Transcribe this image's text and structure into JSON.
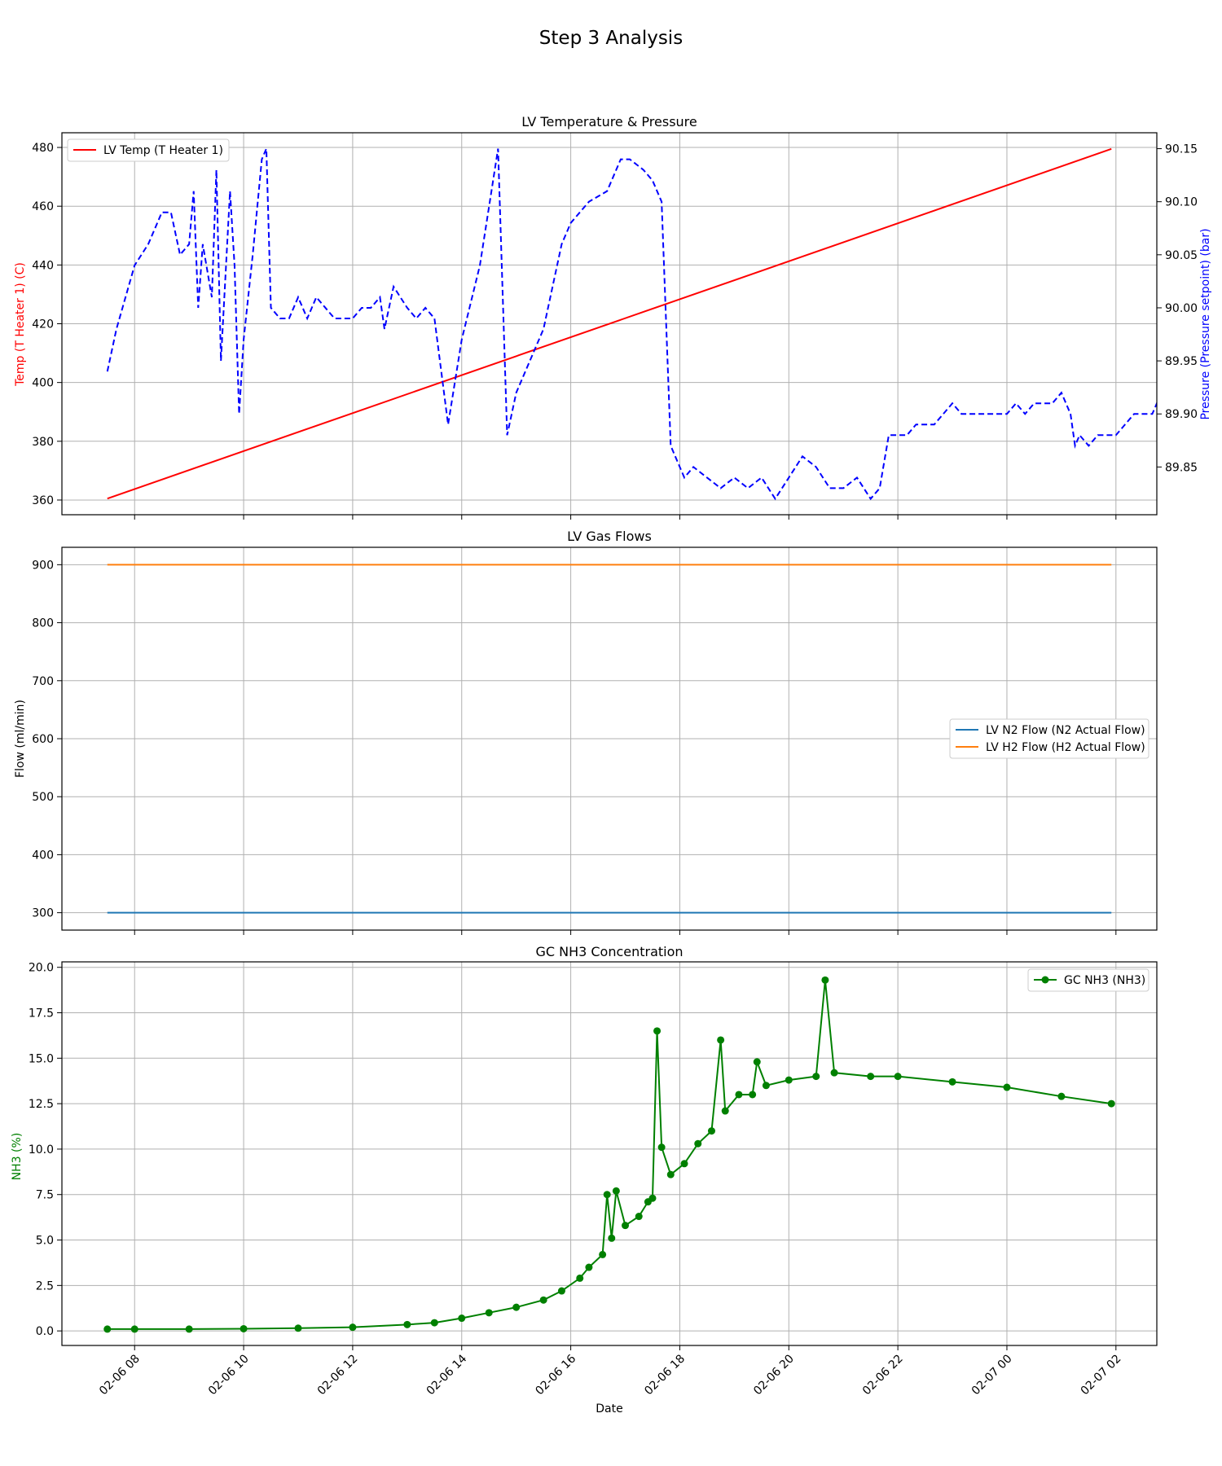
{
  "figure": {
    "suptitle": "Step 3 Analysis"
  },
  "colors": {
    "temperature": "#ff0000",
    "pressure": "#0000ff",
    "n2": "#1f77b4",
    "h2": "#ff7f0e",
    "nh3": "#008000",
    "grid": "#b0b0b0"
  },
  "chart_data": [
    {
      "type": "line",
      "title": "LV Temperature & Pressure",
      "xlabel": "",
      "ylabel": "Temp (T Heater 1) (C)",
      "y2label": "Pressure (Pressure setpoint) (bar)",
      "ylim": [
        355,
        485
      ],
      "y2lim": [
        89.805,
        90.165
      ],
      "yticks": [
        360,
        380,
        400,
        420,
        440,
        460,
        480
      ],
      "y2ticks": [
        "89.85",
        "89.90",
        "89.95",
        "90.00",
        "90.05",
        "90.10",
        "90.15"
      ],
      "grid": true,
      "legend": {
        "position": "upper-left",
        "entries": [
          "LV Temp (T Heater 1)"
        ]
      },
      "series": [
        {
          "name": "LV Temp (T Heater 1)",
          "axis": "left",
          "style": "solid",
          "points": [
            [
              "2026-02-06 07:30",
              360.5
            ],
            [
              "2026-02-07 01:55",
              479.5
            ]
          ]
        },
        {
          "axis": "right",
          "style": "dashed",
          "points": [
            [
              "2026-02-06 07:30",
              89.94
            ],
            [
              "2026-02-06 07:40",
              89.98
            ],
            [
              "2026-02-06 07:50",
              90.01
            ],
            [
              "2026-02-06 08:00",
              90.04
            ],
            [
              "2026-02-06 08:15",
              90.06
            ],
            [
              "2026-02-06 08:30",
              90.09
            ],
            [
              "2026-02-06 08:40",
              90.09
            ],
            [
              "2026-02-06 08:50",
              90.05
            ],
            [
              "2026-02-06 09:00",
              90.06
            ],
            [
              "2026-02-06 09:05",
              90.11
            ],
            [
              "2026-02-06 09:10",
              90.0
            ],
            [
              "2026-02-06 09:15",
              90.06
            ],
            [
              "2026-02-06 09:25",
              90.01
            ],
            [
              "2026-02-06 09:30",
              90.13
            ],
            [
              "2026-02-06 09:35",
              89.95
            ],
            [
              "2026-02-06 09:45",
              90.11
            ],
            [
              "2026-02-06 09:50",
              90.04
            ],
            [
              "2026-02-06 09:55",
              89.9
            ],
            [
              "2026-02-06 10:00",
              89.97
            ],
            [
              "2026-02-06 10:10",
              90.05
            ],
            [
              "2026-02-06 10:20",
              90.14
            ],
            [
              "2026-02-06 10:25",
              90.15
            ],
            [
              "2026-02-06 10:30",
              90.0
            ],
            [
              "2026-02-06 10:40",
              89.99
            ],
            [
              "2026-02-06 10:50",
              89.99
            ],
            [
              "2026-02-06 11:00",
              90.01
            ],
            [
              "2026-02-06 11:10",
              89.99
            ],
            [
              "2026-02-06 11:20",
              90.01
            ],
            [
              "2026-02-06 11:30",
              90.0
            ],
            [
              "2026-02-06 11:40",
              89.99
            ],
            [
              "2026-02-06 12:00",
              89.99
            ],
            [
              "2026-02-06 12:10",
              90.0
            ],
            [
              "2026-02-06 12:20",
              90.0
            ],
            [
              "2026-02-06 12:30",
              90.01
            ],
            [
              "2026-02-06 12:35",
              89.98
            ],
            [
              "2026-02-06 12:45",
              90.02
            ],
            [
              "2026-02-06 13:00",
              90.0
            ],
            [
              "2026-02-06 13:10",
              89.99
            ],
            [
              "2026-02-06 13:20",
              90.0
            ],
            [
              "2026-02-06 13:30",
              89.99
            ],
            [
              "2026-02-06 13:45",
              89.89
            ],
            [
              "2026-02-06 14:00",
              89.97
            ],
            [
              "2026-02-06 14:20",
              90.04
            ],
            [
              "2026-02-06 14:40",
              90.15
            ],
            [
              "2026-02-06 14:50",
              89.88
            ],
            [
              "2026-02-06 15:00",
              89.92
            ],
            [
              "2026-02-06 15:10",
              89.94
            ],
            [
              "2026-02-06 15:20",
              89.96
            ],
            [
              "2026-02-06 15:30",
              89.98
            ],
            [
              "2026-02-06 15:40",
              90.02
            ],
            [
              "2026-02-06 15:50",
              90.06
            ],
            [
              "2026-02-06 16:00",
              90.08
            ],
            [
              "2026-02-06 16:20",
              90.1
            ],
            [
              "2026-02-06 16:40",
              90.11
            ],
            [
              "2026-02-06 16:55",
              90.14
            ],
            [
              "2026-02-06 17:05",
              90.14
            ],
            [
              "2026-02-06 17:20",
              90.13
            ],
            [
              "2026-02-06 17:30",
              90.12
            ],
            [
              "2026-02-06 17:40",
              90.1
            ],
            [
              "2026-02-06 17:50",
              89.87
            ],
            [
              "2026-02-06 18:05",
              89.84
            ],
            [
              "2026-02-06 18:15",
              89.85
            ],
            [
              "2026-02-06 18:30",
              89.84
            ],
            [
              "2026-02-06 18:45",
              89.83
            ],
            [
              "2026-02-06 19:00",
              89.84
            ],
            [
              "2026-02-06 19:15",
              89.83
            ],
            [
              "2026-02-06 19:30",
              89.84
            ],
            [
              "2026-02-06 19:45",
              89.82
            ],
            [
              "2026-02-06 20:00",
              89.84
            ],
            [
              "2026-02-06 20:15",
              89.86
            ],
            [
              "2026-02-06 20:30",
              89.85
            ],
            [
              "2026-02-06 20:45",
              89.83
            ],
            [
              "2026-02-06 21:00",
              89.83
            ],
            [
              "2026-02-06 21:15",
              89.84
            ],
            [
              "2026-02-06 21:30",
              89.82
            ],
            [
              "2026-02-06 21:40",
              89.83
            ],
            [
              "2026-02-06 21:50",
              89.88
            ],
            [
              "2026-02-06 22:10",
              89.88
            ],
            [
              "2026-02-06 22:20",
              89.89
            ],
            [
              "2026-02-06 22:40",
              89.89
            ],
            [
              "2026-02-06 22:50",
              89.9
            ],
            [
              "2026-02-06 23:00",
              89.91
            ],
            [
              "2026-02-06 23:10",
              89.9
            ],
            [
              "2026-02-06 23:30",
              89.9
            ],
            [
              "2026-02-07 00:00",
              89.9
            ],
            [
              "2026-02-07 00:10",
              89.91
            ],
            [
              "2026-02-07 00:20",
              89.9
            ],
            [
              "2026-02-07 00:30",
              89.91
            ],
            [
              "2026-02-07 00:50",
              89.91
            ],
            [
              "2026-02-07 01:00",
              89.92
            ],
            [
              "2026-02-07 01:10",
              89.9
            ],
            [
              "2026-02-07 01:15",
              89.87
            ],
            [
              "2026-02-07 01:20",
              89.88
            ],
            [
              "2026-02-07 01:30",
              89.87
            ],
            [
              "2026-02-07 01:40",
              89.88
            ],
            [
              "2026-02-07 02:00",
              89.88
            ],
            [
              "2026-02-07 02:10",
              89.89
            ],
            [
              "2026-02-07 02:20",
              89.9
            ],
            [
              "2026-02-07 02:40",
              89.9
            ],
            [
              "2026-02-07 02:50",
              89.92
            ],
            [
              "2026-02-07 03:00",
              89.91
            ],
            [
              "2026-02-07 03:05",
              89.92
            ]
          ]
        }
      ]
    },
    {
      "type": "line",
      "title": "LV Gas Flows",
      "xlabel": "",
      "ylabel": "Flow (ml/min)",
      "ylim": [
        270,
        930
      ],
      "yticks": [
        300,
        400,
        500,
        600,
        700,
        800,
        900
      ],
      "grid": true,
      "legend": {
        "position": "center-right",
        "entries": [
          "LV N2 Flow (N2 Actual Flow)",
          "LV H2 Flow (H2 Actual Flow)"
        ]
      },
      "series": [
        {
          "name": "LV N2 Flow (N2 Actual Flow)",
          "points": [
            [
              "2026-02-06 07:30",
              300
            ],
            [
              "2026-02-07 01:55",
              300
            ]
          ]
        },
        {
          "name": "LV H2 Flow (H2 Actual Flow)",
          "points": [
            [
              "2026-02-06 07:30",
              900
            ],
            [
              "2026-02-07 01:55",
              900
            ]
          ]
        }
      ]
    },
    {
      "type": "line",
      "title": "GC NH3 Concentration",
      "xlabel": "Date",
      "ylabel": "NH3 (%)",
      "ylim": [
        -0.8,
        20.3
      ],
      "yticks": [
        "0.0",
        "2.5",
        "5.0",
        "7.5",
        "10.0",
        "12.5",
        "15.0",
        "17.5",
        "20.0"
      ],
      "xticks": [
        "02-06 08",
        "02-06 10",
        "02-06 12",
        "02-06 14",
        "02-06 16",
        "02-06 18",
        "02-06 20",
        "02-06 22",
        "02-07 00",
        "02-07 02"
      ],
      "xlim": [
        "2026-02-06 06:40",
        "2026-02-07 02:45"
      ],
      "grid": true,
      "legend": {
        "position": "upper-right",
        "entries": [
          "GC NH3 (NH3)"
        ]
      },
      "series": [
        {
          "name": "GC NH3 (NH3)",
          "markers": true,
          "points": [
            [
              "2026-02-06 07:30",
              0.1
            ],
            [
              "2026-02-06 08:00",
              0.1
            ],
            [
              "2026-02-06 09:00",
              0.1
            ],
            [
              "2026-02-06 10:00",
              0.12
            ],
            [
              "2026-02-06 11:00",
              0.15
            ],
            [
              "2026-02-06 12:00",
              0.2
            ],
            [
              "2026-02-06 13:00",
              0.35
            ],
            [
              "2026-02-06 13:30",
              0.45
            ],
            [
              "2026-02-06 14:00",
              0.7
            ],
            [
              "2026-02-06 14:30",
              1.0
            ],
            [
              "2026-02-06 15:00",
              1.3
            ],
            [
              "2026-02-06 15:30",
              1.7
            ],
            [
              "2026-02-06 15:50",
              2.2
            ],
            [
              "2026-02-06 16:10",
              2.9
            ],
            [
              "2026-02-06 16:20",
              3.5
            ],
            [
              "2026-02-06 16:35",
              4.2
            ],
            [
              "2026-02-06 16:40",
              7.5
            ],
            [
              "2026-02-06 16:45",
              5.1
            ],
            [
              "2026-02-06 16:50",
              7.7
            ],
            [
              "2026-02-06 17:00",
              5.8
            ],
            [
              "2026-02-06 17:15",
              6.3
            ],
            [
              "2026-02-06 17:25",
              7.1
            ],
            [
              "2026-02-06 17:30",
              7.3
            ],
            [
              "2026-02-06 17:35",
              16.5
            ],
            [
              "2026-02-06 17:40",
              10.1
            ],
            [
              "2026-02-06 17:50",
              8.6
            ],
            [
              "2026-02-06 18:05",
              9.2
            ],
            [
              "2026-02-06 18:20",
              10.3
            ],
            [
              "2026-02-06 18:35",
              11.0
            ],
            [
              "2026-02-06 18:45",
              16.0
            ],
            [
              "2026-02-06 18:50",
              12.1
            ],
            [
              "2026-02-06 19:05",
              13.0
            ],
            [
              "2026-02-06 19:20",
              13.0
            ],
            [
              "2026-02-06 19:25",
              14.8
            ],
            [
              "2026-02-06 19:35",
              13.5
            ],
            [
              "2026-02-06 20:00",
              13.8
            ],
            [
              "2026-02-06 20:30",
              14.0
            ],
            [
              "2026-02-06 20:40",
              19.3
            ],
            [
              "2026-02-06 20:50",
              14.2
            ],
            [
              "2026-02-06 21:30",
              14.0
            ],
            [
              "2026-02-06 22:00",
              14.0
            ],
            [
              "2026-02-06 23:00",
              13.7
            ],
            [
              "2026-02-07 00:00",
              13.4
            ],
            [
              "2026-02-07 01:00",
              12.9
            ],
            [
              "2026-02-07 01:55",
              12.5
            ]
          ]
        }
      ]
    }
  ]
}
